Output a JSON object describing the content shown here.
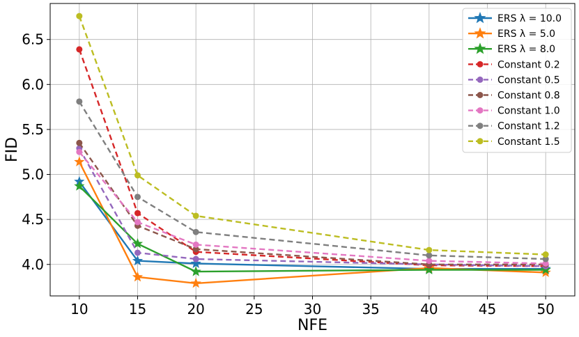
{
  "chart_data": {
    "type": "line",
    "title": "",
    "xlabel": "NFE",
    "ylabel": "FID",
    "x": [
      10,
      15,
      20,
      40,
      50
    ],
    "xlim": [
      7.5,
      52.5
    ],
    "ylim": [
      3.65,
      6.9
    ],
    "xticks": [
      10,
      15,
      20,
      25,
      30,
      35,
      40,
      45,
      50
    ],
    "yticks": [
      4.0,
      4.5,
      5.0,
      5.5,
      6.0,
      6.5
    ],
    "xtick_labels": [
      "10",
      "15",
      "20",
      "25",
      "30",
      "35",
      "40",
      "45",
      "50"
    ],
    "ytick_labels": [
      "4.0",
      "4.5",
      "5.0",
      "5.5",
      "6.0",
      "6.5"
    ],
    "grid": true,
    "legend_position": "top-right",
    "series": [
      {
        "name": "ERS λ = 10.0",
        "values": [
          4.92,
          4.04,
          4.01,
          3.95,
          3.95
        ],
        "color": "#1f77b4",
        "dashed": false,
        "marker": "star"
      },
      {
        "name": "ERS λ = 5.0",
        "values": [
          5.14,
          3.86,
          3.79,
          3.96,
          3.91
        ],
        "color": "#ff7f0e",
        "dashed": false,
        "marker": "star"
      },
      {
        "name": "ERS λ = 8.0",
        "values": [
          4.87,
          4.23,
          3.92,
          3.94,
          3.94
        ],
        "color": "#2ca02c",
        "dashed": false,
        "marker": "star"
      },
      {
        "name": "Constant 0.2",
        "values": [
          6.39,
          4.57,
          4.14,
          3.99,
          3.98
        ],
        "color": "#d62728",
        "dashed": true,
        "marker": "circle"
      },
      {
        "name": "Constant 0.5",
        "values": [
          5.29,
          4.13,
          4.06,
          4.0,
          3.98
        ],
        "color": "#9467bd",
        "dashed": true,
        "marker": "circle"
      },
      {
        "name": "Constant 0.8",
        "values": [
          5.35,
          4.43,
          4.17,
          4.0,
          4.0
        ],
        "color": "#8c564b",
        "dashed": true,
        "marker": "circle"
      },
      {
        "name": "Constant 1.0",
        "values": [
          5.25,
          4.47,
          4.22,
          4.04,
          4.01
        ],
        "color": "#e377c2",
        "dashed": true,
        "marker": "circle"
      },
      {
        "name": "Constant 1.2",
        "values": [
          5.81,
          4.75,
          4.36,
          4.1,
          4.06
        ],
        "color": "#7f7f7f",
        "dashed": true,
        "marker": "circle"
      },
      {
        "name": "Constant 1.5",
        "values": [
          6.76,
          4.99,
          4.54,
          4.16,
          4.11
        ],
        "color": "#bcbd22",
        "dashed": true,
        "marker": "circle"
      }
    ]
  }
}
